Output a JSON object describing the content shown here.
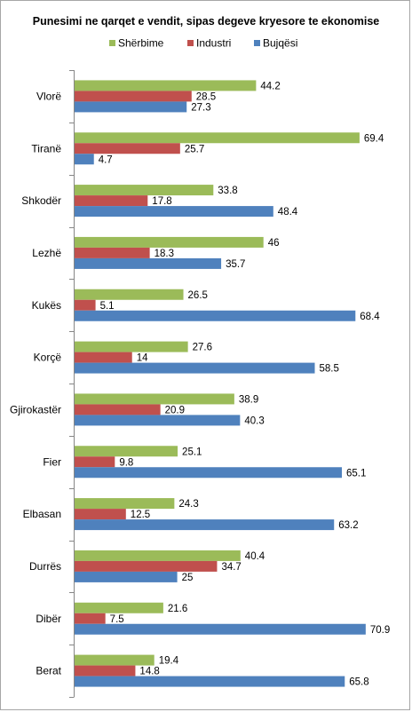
{
  "chart_data": {
    "type": "bar",
    "orientation": "horizontal",
    "title": "Punesimi ne qarqet e vendit, sipas  degeve kryesore te ekonomise",
    "legend_position": "top",
    "xlim": [
      0,
      75
    ],
    "grid": false,
    "categories": [
      "Vlorë",
      "Tiranë",
      "Shkodër",
      "Lezhë",
      "Kukës",
      "Korçë",
      "Gjirokastër",
      "Fier",
      "Elbasan",
      "Durrës",
      "Dibër",
      "Berat"
    ],
    "series": [
      {
        "name": "Shërbime",
        "color": "#9bbb59",
        "values": [
          44.2,
          69.4,
          33.8,
          46,
          26.5,
          27.6,
          38.9,
          25.1,
          24.3,
          40.4,
          21.6,
          19.4
        ]
      },
      {
        "name": "Industri",
        "color": "#c0504d",
        "values": [
          28.5,
          25.7,
          17.8,
          18.3,
          5.1,
          14,
          20.9,
          9.8,
          12.5,
          34.7,
          7.5,
          14.8
        ]
      },
      {
        "name": "Bujqësi",
        "color": "#4f81bd",
        "values": [
          27.3,
          4.7,
          48.4,
          35.7,
          68.4,
          58.5,
          40.3,
          65.1,
          63.2,
          25,
          70.9,
          65.8
        ]
      }
    ]
  }
}
